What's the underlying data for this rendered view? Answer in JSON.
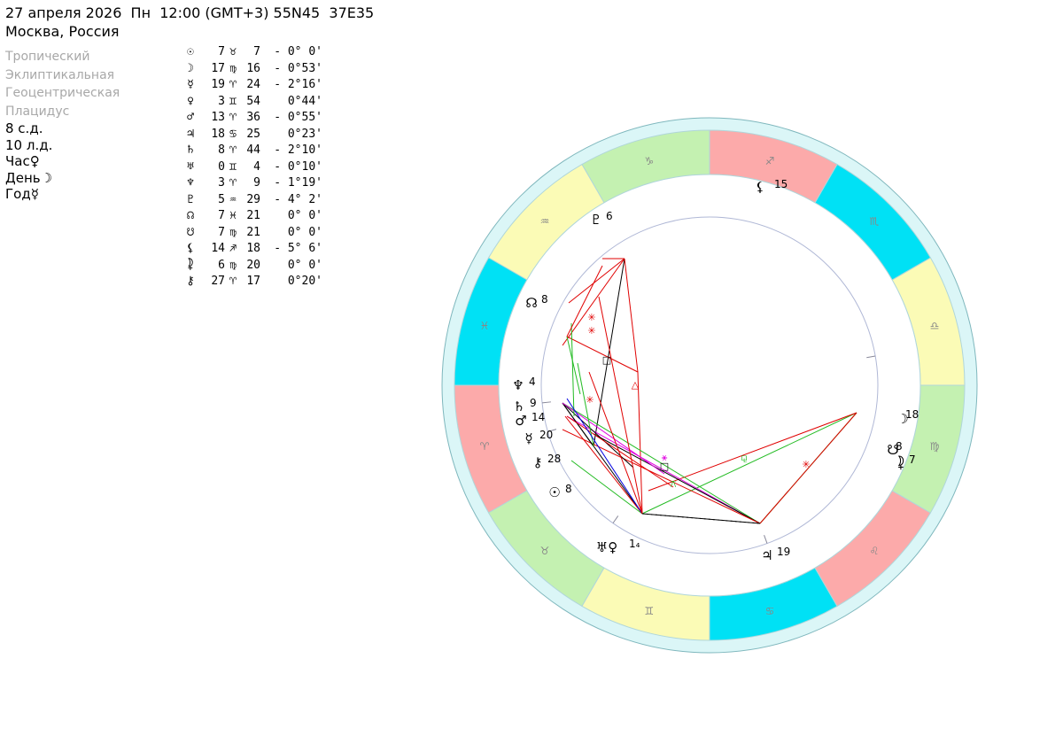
{
  "header": {
    "datetime_line": "27 апреля 2026  Пн  12:00 (GMT+3) 55N45  37E35",
    "location_line": "Москва, Россия"
  },
  "settings": [
    "Тропический",
    "Эклиптикальная",
    "Геоцентрическая",
    "Плацидус"
  ],
  "counts": [
    "8 с.д.",
    "10 л.д.",
    "Час♀",
    "День☽",
    "Год☿"
  ],
  "planets": [
    {
      "glyph": "☉",
      "deg": "7",
      "sign": "♉",
      "min": "7",
      "lat": "- 0° 0'"
    },
    {
      "glyph": "☽",
      "deg": "17",
      "sign": "♍",
      "min": "16",
      "lat": "- 0°53'"
    },
    {
      "glyph": "☿",
      "deg": "19",
      "sign": "♈",
      "min": "24",
      "lat": "- 2°16'"
    },
    {
      "glyph": "♀",
      "deg": "3",
      "sign": "♊",
      "min": "54",
      "lat": "0°44'"
    },
    {
      "glyph": "♂",
      "deg": "13",
      "sign": "♈",
      "min": "36",
      "lat": "- 0°55'"
    },
    {
      "glyph": "♃",
      "deg": "18",
      "sign": "♋",
      "min": "25",
      "lat": "0°23'"
    },
    {
      "glyph": "♄",
      "deg": "8",
      "sign": "♈",
      "min": "44",
      "lat": "- 2°10'"
    },
    {
      "glyph": "♅",
      "deg": "0",
      "sign": "♊",
      "min": "4",
      "lat": "- 0°10'"
    },
    {
      "glyph": "♆",
      "deg": "3",
      "sign": "♈",
      "min": "9",
      "lat": "- 1°19'"
    },
    {
      "glyph": "♇",
      "deg": "5",
      "sign": "♒",
      "min": "29",
      "lat": "- 4° 2'"
    },
    {
      "glyph": "☊",
      "deg": "7",
      "sign": "♓",
      "min": "21",
      "lat": "0° 0'"
    },
    {
      "glyph": "☋",
      "deg": "7",
      "sign": "♍",
      "min": "21",
      "lat": "0° 0'"
    },
    {
      "glyph": "⚸",
      "deg": "14",
      "sign": "♐",
      "min": "18",
      "lat": "- 5° 6'"
    },
    {
      "glyph": "⯝",
      "deg": "6",
      "sign": "♍",
      "min": "20",
      "lat": "0° 0'"
    },
    {
      "glyph": "⚷",
      "deg": "27",
      "sign": "♈",
      "min": "17",
      "lat": "0°20'"
    }
  ],
  "chart_wheel": {
    "zodiac_signs": [
      "♈",
      "♉",
      "♊",
      "♋",
      "♌",
      "♍",
      "♎",
      "♏",
      "♐",
      "♑",
      "♒",
      "♓"
    ],
    "element_colors": {
      "fire": "#fcaaaa",
      "earth": "#c4f1b1",
      "air": "#fbfbb6",
      "water": "#00e1f5"
    },
    "ring_color": "#dbf6f7",
    "planet_markers": [
      {
        "glyph": "⚸",
        "label": "15"
      },
      {
        "glyph": "♇",
        "label": "6"
      },
      {
        "glyph": "☊",
        "label": "8"
      },
      {
        "glyph": "♆",
        "label": "4"
      },
      {
        "glyph": "♄",
        "label": "9"
      },
      {
        "glyph": "♂",
        "label": "14"
      },
      {
        "glyph": "☿",
        "label": "20"
      },
      {
        "glyph": "⚷",
        "label": "28"
      },
      {
        "glyph": "☉",
        "label": "8"
      },
      {
        "glyph": "♅♀",
        "label": "1₄"
      },
      {
        "glyph": "♃",
        "label": "19"
      },
      {
        "glyph": "☽",
        "label": "18"
      },
      {
        "glyph": "☋",
        "label": "8"
      },
      {
        "glyph": "⯝",
        "label": "7"
      }
    ],
    "aspect_colors": {
      "red": "#e00000",
      "green": "#22bb22",
      "black": "#000000",
      "magenta": "#e000e0",
      "blue": "#0000e0"
    }
  }
}
